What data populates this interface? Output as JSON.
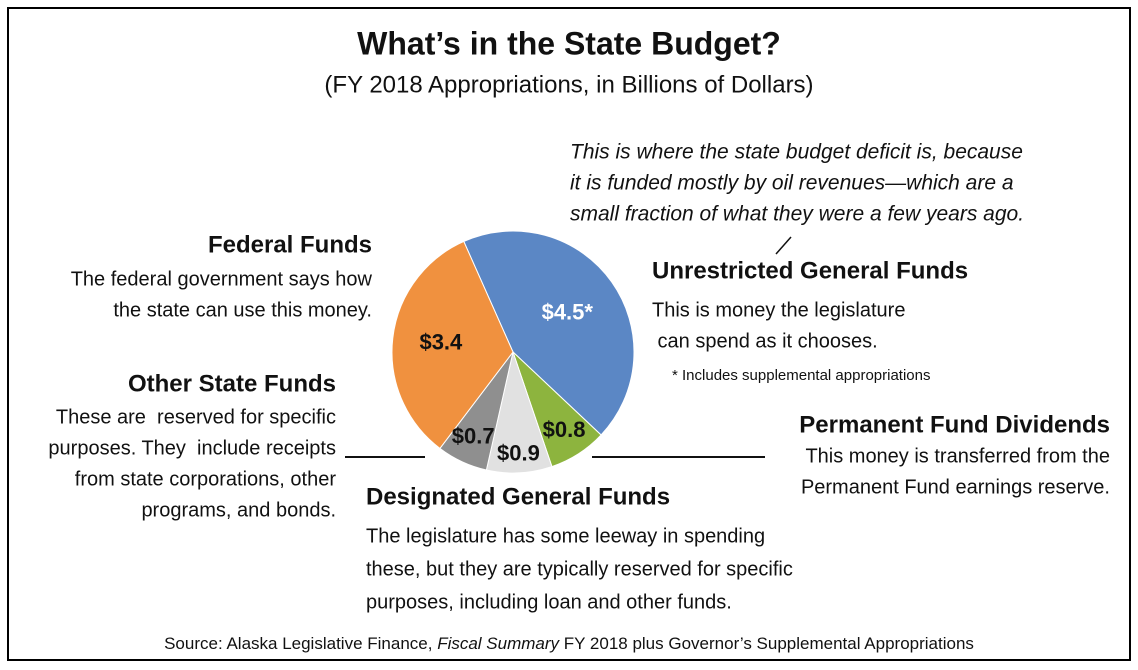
{
  "chart_data": {
    "type": "pie",
    "title": "What’s in the State Budget?",
    "subtitle": "(FY 2018 Appropriations, in Billions of Dollars)",
    "annotation": [
      "This is where the state budget deficit is, because",
      "it is funded mostly by oil revenues—which are a",
      "small fraction of what they were a few years ago."
    ],
    "categories": [
      "Unrestricted General Funds",
      "Permanent Fund Dividends",
      "Designated General Funds",
      "Other State Funds",
      "Federal Funds"
    ],
    "descriptions": [
      [
        "This is money the legislature",
        " can spend as it chooses."
      ],
      [
        "This money is transferred from the",
        "Permanent Fund earnings reserve."
      ],
      [
        "The legislature has some leeway in spending",
        "these, but they are typically reserved for specific",
        "purposes, including loan and other funds."
      ],
      [
        "These are  reserved for specific",
        "purposes. They  include receipts",
        "from state corporations, other",
        "programs, and bonds."
      ],
      [
        "The federal government says how",
        "the state can use this money."
      ]
    ],
    "values": [
      4.5,
      0.8,
      0.9,
      0.7,
      3.4
    ],
    "value_labels": [
      "$4.5*",
      "$0.8",
      "$0.9",
      "$0.7",
      "$3.4"
    ],
    "colors": [
      "#5b87c5",
      "#8db43e",
      "#e1e1e1",
      "#8f8f8f",
      "#f0913f"
    ],
    "footnote": "* Includes supplemental appropriations",
    "source": [
      "Source: Alaska Legislative Finance, ",
      "Fiscal Summary",
      " FY 2018 plus Governor’s Supplemental Appropriations"
    ]
  }
}
